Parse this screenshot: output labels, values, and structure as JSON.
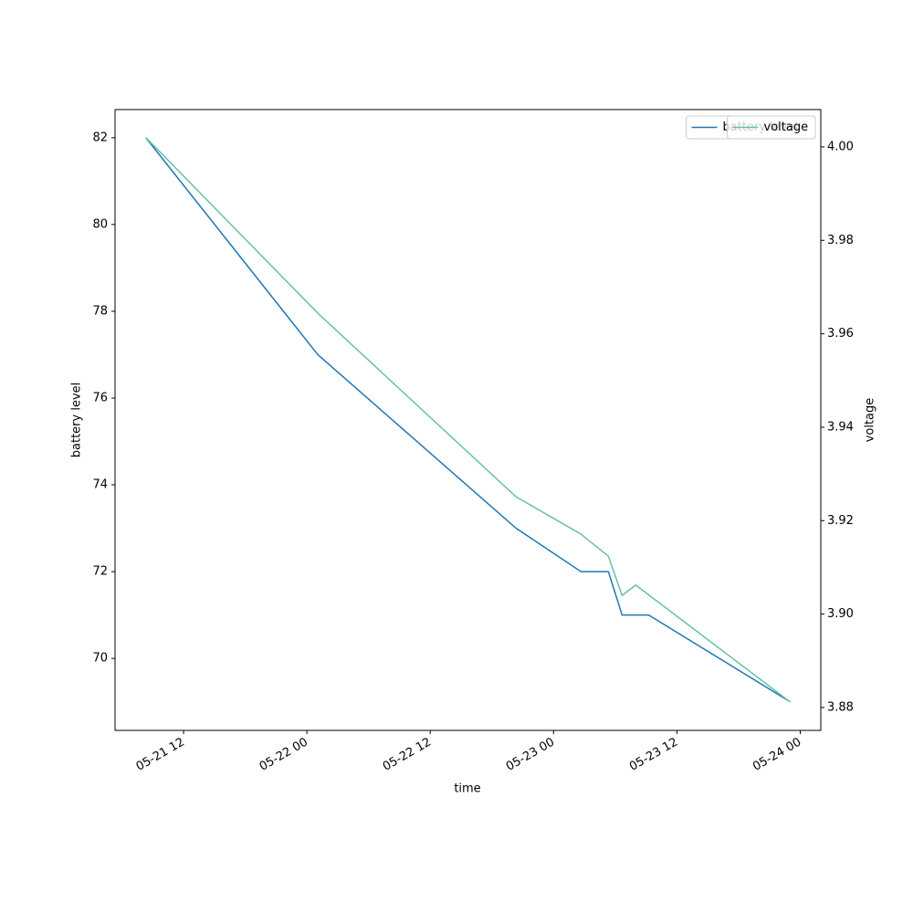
{
  "chart_data": {
    "type": "line",
    "x_label": "time",
    "y_label": "battery level",
    "y2_label": "voltage",
    "xlim": [
      "05-21 05:20",
      "05-24 02:00"
    ],
    "xticks": [
      "05-21 12",
      "05-22 00",
      "05-22 12",
      "05-23 00",
      "05-23 12",
      "05-24 00"
    ],
    "ylim": [
      68.34,
      82.65
    ],
    "yticks": [
      70,
      72,
      74,
      76,
      78,
      80,
      82
    ],
    "y2lim": [
      3.8751,
      4.008
    ],
    "y2ticks": [
      3.88,
      {
        "value": 3.9,
        "label": "3.90"
      },
      3.92,
      3.94,
      3.96,
      3.98,
      {
        "value": 4,
        "label": "4.00"
      }
    ],
    "legend": "upper right",
    "series": [
      {
        "name": "battery level",
        "color": "#1f77b4",
        "x": [
          "05-21 08:20",
          "05-22 01:04",
          "05-22 20:21",
          "05-23 02:40",
          "05-23 05:20",
          "05-23 06:40",
          "05-23 09:15",
          "05-23 23:01"
        ],
        "values": [
          82,
          77,
          73,
          72,
          72,
          71,
          71,
          69
        ]
      },
      {
        "name": "voltage",
        "color": "#66c2a5",
        "axis": "y2",
        "x": [
          "05-21 08:20",
          "05-22 01:04",
          "05-22 20:21",
          "05-23 02:40",
          "05-23 05:20",
          "05-23 06:40",
          "05-23 08:00",
          "05-23 23:01"
        ],
        "values": [
          4.002,
          3.9644,
          3.9251,
          3.9171,
          3.9124,
          3.904,
          3.9062,
          3.8812
        ]
      }
    ]
  }
}
